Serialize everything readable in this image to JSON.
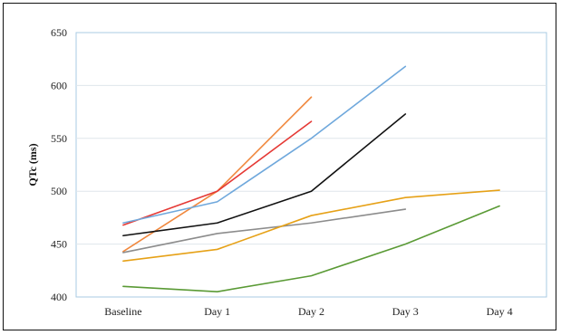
{
  "chart_data": {
    "type": "line",
    "title": "",
    "xlabel": "",
    "ylabel": "QTc (ms)",
    "categories": [
      "Baseline",
      "Day 1",
      "Day 2",
      "Day 3",
      "Day 4"
    ],
    "ylim": [
      400,
      650
    ],
    "yticks": [
      400,
      450,
      500,
      550,
      600,
      650
    ],
    "grid": true,
    "legend": "none",
    "series": [
      {
        "color": "#f0883e",
        "values": [
          443,
          500,
          589,
          null,
          null
        ]
      },
      {
        "color": "#e53935",
        "values": [
          468,
          500,
          566,
          null,
          null
        ]
      },
      {
        "color": "#6fa8dc",
        "values": [
          470,
          490,
          550,
          618,
          null
        ]
      },
      {
        "color": "#111111",
        "values": [
          458,
          470,
          500,
          573,
          null
        ]
      },
      {
        "color": "#8c8c8c",
        "values": [
          442,
          460,
          470,
          483,
          null
        ]
      },
      {
        "color": "#e6a117",
        "values": [
          434,
          445,
          477,
          494,
          501
        ]
      },
      {
        "color": "#5a9a35",
        "values": [
          410,
          405,
          420,
          450,
          486
        ]
      }
    ]
  }
}
